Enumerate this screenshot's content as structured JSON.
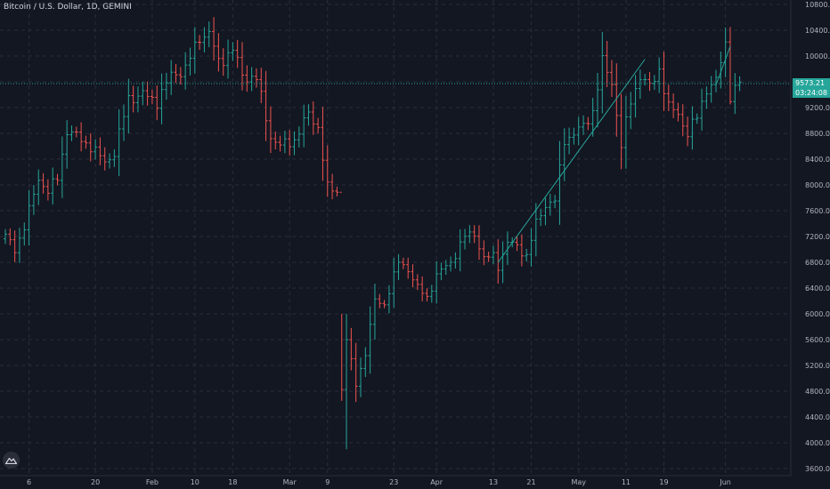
{
  "header": {
    "title": "Bitcoin / U.S. Dollar, 1D, GEMINI"
  },
  "price_line": {
    "price_label": "9573.21",
    "countdown_label": "03:24:08",
    "color": "#26a69a"
  },
  "colors": {
    "background": "#131722",
    "up": "#26a69a",
    "down": "#ef5350",
    "grid": "#2a2e39",
    "text": "#b2b5be"
  },
  "logo": {
    "icon": "tradingview-mountain-icon"
  },
  "chart_data": {
    "type": "ohlc",
    "title": "Bitcoin / U.S. Dollar, 1D, GEMINI",
    "x_tick_labels": [
      {
        "label": "6",
        "day": 5
      },
      {
        "label": "20",
        "day": 19
      },
      {
        "label": "Feb",
        "day": 31
      },
      {
        "label": "10",
        "day": 40
      },
      {
        "label": "18",
        "day": 48
      },
      {
        "label": "Mar",
        "day": 60
      },
      {
        "label": "9",
        "day": 68
      },
      {
        "label": "23",
        "day": 82
      },
      {
        "label": "Apr",
        "day": 91
      },
      {
        "label": "13",
        "day": 103
      },
      {
        "label": "21",
        "day": 111
      },
      {
        "label": "May",
        "day": 121
      },
      {
        "label": "11",
        "day": 131
      },
      {
        "label": "19",
        "day": 139
      },
      {
        "label": "Jun",
        "day": 152
      }
    ],
    "y_ticks": [
      "3600.00",
      "4000.00",
      "4400.00",
      "4800.00",
      "5200.00",
      "5600.00",
      "6000.00",
      "6400.00",
      "6800.00",
      "7200.00",
      "7600.00",
      "8000.00",
      "8400.00",
      "8800.00",
      "9200.00",
      "9600.00",
      "10000.00",
      "10400.00",
      "10800.00"
    ],
    "ylim": [
      3550,
      10850
    ],
    "current_price": 9573.21,
    "grid": true,
    "key_points": [
      {
        "day": 0,
        "close": 7200
      },
      {
        "day": 2,
        "close": 7000
      },
      {
        "day": 4,
        "close": 7350
      },
      {
        "day": 7,
        "close": 8100
      },
      {
        "day": 9,
        "close": 7900
      },
      {
        "day": 11,
        "close": 8100
      },
      {
        "day": 13,
        "close": 8850
      },
      {
        "day": 16,
        "close": 8700
      },
      {
        "day": 18,
        "close": 8600
      },
      {
        "day": 21,
        "close": 8350
      },
      {
        "day": 23,
        "close": 8500
      },
      {
        "day": 26,
        "close": 9350
      },
      {
        "day": 29,
        "close": 9400
      },
      {
        "day": 32,
        "close": 9300
      },
      {
        "day": 35,
        "close": 9700
      },
      {
        "day": 38,
        "close": 9800
      },
      {
        "day": 41,
        "close": 10300
      },
      {
        "day": 43,
        "close": 10350
      },
      {
        "day": 45,
        "close": 9900
      },
      {
        "day": 48,
        "close": 10100
      },
      {
        "day": 50,
        "close": 9700
      },
      {
        "day": 53,
        "close": 9650
      },
      {
        "day": 56,
        "close": 8750
      },
      {
        "day": 58,
        "close": 8600
      },
      {
        "day": 61,
        "close": 8700
      },
      {
        "day": 64,
        "close": 9100
      },
      {
        "day": 66,
        "close": 8900
      },
      {
        "day": 68,
        "close": 7950
      },
      {
        "day": 70,
        "close": 7900
      },
      {
        "day": 71,
        "close": 4850
      },
      {
        "day": 72,
        "close": 5600
      },
      {
        "day": 74,
        "close": 4900
      },
      {
        "day": 76,
        "close": 5400
      },
      {
        "day": 78,
        "close": 6200
      },
      {
        "day": 80,
        "close": 6150
      },
      {
        "day": 83,
        "close": 6800
      },
      {
        "day": 85,
        "close": 6700
      },
      {
        "day": 87,
        "close": 6400
      },
      {
        "day": 89,
        "close": 6250
      },
      {
        "day": 91,
        "close": 6600
      },
      {
        "day": 94,
        "close": 6800
      },
      {
        "day": 97,
        "close": 7200
      },
      {
        "day": 99,
        "close": 7250
      },
      {
        "day": 101,
        "close": 6850
      },
      {
        "day": 103,
        "close": 6900
      },
      {
        "day": 104,
        "close": 6750
      },
      {
        "day": 106,
        "close": 7100
      },
      {
        "day": 108,
        "close": 7050
      },
      {
        "day": 110,
        "close": 6900
      },
      {
        "day": 112,
        "close": 7400
      },
      {
        "day": 114,
        "close": 7700
      },
      {
        "day": 116,
        "close": 7750
      },
      {
        "day": 118,
        "close": 8700
      },
      {
        "day": 120,
        "close": 8800
      },
      {
        "day": 122,
        "close": 8900
      },
      {
        "day": 124,
        "close": 9150
      },
      {
        "day": 126,
        "close": 9900
      },
      {
        "day": 128,
        "close": 9600
      },
      {
        "day": 130,
        "close": 8600
      },
      {
        "day": 132,
        "close": 9300
      },
      {
        "day": 134,
        "close": 9700
      },
      {
        "day": 136,
        "close": 9500
      },
      {
        "day": 138,
        "close": 9800
      },
      {
        "day": 140,
        "close": 9200
      },
      {
        "day": 142,
        "close": 9100
      },
      {
        "day": 144,
        "close": 8800
      },
      {
        "day": 146,
        "close": 9050
      },
      {
        "day": 148,
        "close": 9500
      },
      {
        "day": 150,
        "close": 9600
      },
      {
        "day": 152,
        "close": 10200
      },
      {
        "day": 153,
        "close": 9400
      },
      {
        "day": 155,
        "close": 9573
      }
    ],
    "trend_lines": [
      {
        "from": {
          "day": 104,
          "price": 6800
        },
        "to": {
          "day": 135,
          "price": 9950
        }
      },
      {
        "from": {
          "day": 150,
          "price": 9550
        },
        "to": {
          "day": 153,
          "price": 10150
        }
      }
    ]
  }
}
